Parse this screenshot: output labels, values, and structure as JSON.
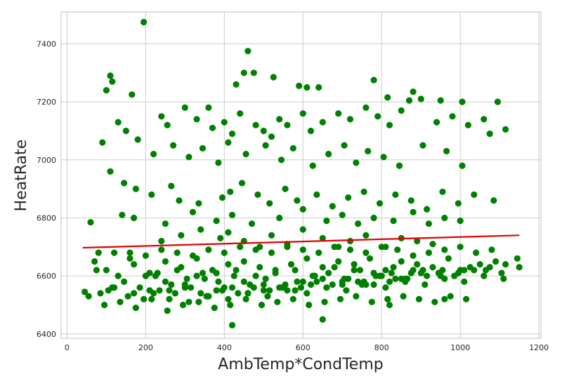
{
  "chart_data": {
    "type": "scatter",
    "title": "",
    "xlabel": "AmbTemp*CondTemp",
    "ylabel": "HeatRate",
    "xlim": [
      -15,
      1205
    ],
    "ylim": [
      6385,
      7510
    ],
    "xticks": [
      0,
      200,
      400,
      600,
      800,
      1000,
      1200
    ],
    "yticks": [
      6400,
      6600,
      6800,
      7000,
      7200,
      7400
    ],
    "grid": true,
    "colors": {
      "points": "#008000",
      "fit_line": "#e00000",
      "grid": "#cccccc"
    },
    "series": [
      {
        "kind": "points",
        "x": [
          195,
          460,
          110,
          115,
          165,
          450,
          475,
          525,
          100,
          430,
          590,
          610,
          640,
          780,
          880,
          815,
          900,
          870,
          950,
          1005,
          1095,
          1115,
          240,
          255,
          300,
          330,
          360,
          370,
          400,
          420,
          440,
          480,
          500,
          520,
          540,
          560,
          600,
          620,
          650,
          690,
          720,
          760,
          790,
          820,
          850,
          940,
          980,
          1020,
          1060,
          90,
          130,
          150,
          180,
          220,
          270,
          310,
          345,
          385,
          410,
          455,
          505,
          545,
          575,
          625,
          665,
          705,
          735,
          765,
          805,
          845,
          905,
          965,
          1005,
          1075,
          110,
          145,
          175,
          215,
          265,
          285,
          335,
          395,
          415,
          445,
          485,
          515,
          555,
          585,
          635,
          675,
          715,
          755,
          795,
          835,
          875,
          915,
          955,
          995,
          1035,
          1085,
          140,
          170,
          250,
          320,
          380,
          420,
          470,
          540,
          600,
          660,
          700,
          740,
          780,
          830,
          880,
          920,
          960,
          1000,
          60,
          160,
          240,
          290,
          340,
          390,
          410,
          450,
          490,
          520,
          560,
          600,
          650,
          690,
          720,
          760,
          810,
          850,
          890,
          930,
          45,
          75,
          105,
          145,
          185,
          225,
          265,
          305,
          345,
          385,
          425,
          465,
          505,
          545,
          585,
          625,
          665,
          705,
          745,
          785,
          825,
          865,
          905,
          945,
          985,
          1025,
          1065,
          1105,
          1150,
          55,
          85,
          115,
          155,
          195,
          235,
          275,
          315,
          355,
          395,
          435,
          475,
          515,
          555,
          595,
          635,
          675,
          715,
          755,
          795,
          835,
          875,
          915,
          955,
          995,
          1035,
          1075,
          1115,
          1145,
          70,
          100,
          130,
          170,
          210,
          250,
          290,
          330,
          370,
          410,
          450,
          490,
          530,
          570,
          610,
          650,
          690,
          730,
          770,
          810,
          850,
          890,
          930,
          970,
          1010,
          1050,
          1090,
          80,
          120,
          160,
          200,
          240,
          280,
          320,
          360,
          400,
          440,
          480,
          520,
          560,
          600,
          640,
          680,
          720,
          760,
          800,
          840,
          880,
          920,
          960,
          1000,
          1040,
          1080,
          95,
          135,
          175,
          215,
          255,
          295,
          335,
          375,
          415,
          455,
          495,
          535,
          575,
          615,
          655,
          695,
          735,
          775,
          815,
          855,
          895,
          935,
          975,
          1015,
          200,
          250,
          300,
          350,
          400,
          450,
          500,
          550,
          600,
          650,
          700,
          750,
          800,
          850,
          900,
          950,
          1000,
          220,
          260,
          300,
          340,
          380,
          420,
          460,
          500,
          540,
          580,
          620,
          660,
          700,
          740,
          780,
          820,
          860,
          230,
          280,
          330,
          380,
          430,
          480,
          530,
          580,
          630,
          680,
          730,
          780,
          830,
          880,
          420,
          650,
          820,
          960,
          120,
          170,
          210,
          260,
          310,
          360,
          410,
          460,
          510,
          560,
          610,
          660,
          710,
          760,
          810,
          860,
          910,
          960,
          1010,
          1060,
          1110
        ],
        "y": [
          7475,
          7375,
          7290,
          7270,
          7225,
          7300,
          7300,
          7285,
          7240,
          7260,
          7255,
          7250,
          7250,
          7275,
          7235,
          7215,
          7210,
          7205,
          7205,
          7200,
          7200,
          7105,
          7150,
          7120,
          7180,
          7140,
          7180,
          7110,
          7130,
          7090,
          7160,
          7120,
          7100,
          7080,
          7140,
          7120,
          7160,
          7100,
          7130,
          7160,
          7140,
          7180,
          7150,
          7120,
          7170,
          7130,
          7150,
          7120,
          7140,
          7060,
          7130,
          7100,
          7070,
          7020,
          7050,
          7010,
          7040,
          6990,
          7060,
          7020,
          7050,
          7000,
          7040,
          6980,
          7020,
          7050,
          6990,
          7030,
          7010,
          6980,
          7050,
          7030,
          6980,
          7090,
          6960,
          6920,
          6900,
          6880,
          6910,
          6860,
          6850,
          6870,
          6890,
          6920,
          6880,
          6850,
          6900,
          6860,
          6880,
          6840,
          6870,
          6890,
          6850,
          6880,
          6860,
          6830,
          6890,
          6850,
          6880,
          6860,
          6810,
          6800,
          6780,
          6820,
          6790,
          6810,
          6780,
          6800,
          6830,
          6790,
          6810,
          6780,
          6800,
          6790,
          6820,
          6780,
          6800,
          6790,
          6785,
          6680,
          6720,
          6740,
          6760,
          6730,
          6750,
          6720,
          6700,
          6740,
          6710,
          6760,
          6730,
          6700,
          6720,
          6740,
          6700,
          6730,
          6720,
          6710,
          6545,
          6620,
          6550,
          6580,
          6560,
          6600,
          6570,
          6590,
          6610,
          6580,
          6600,
          6570,
          6590,
          6560,
          6580,
          6600,
          6610,
          6590,
          6620,
          6600,
          6610,
          6590,
          6620,
          6610,
          6600,
          6630,
          6620,
          6610,
          6630,
          6530,
          6540,
          6560,
          6530,
          6520,
          6550,
          6540,
          6560,
          6530,
          6550,
          6540,
          6560,
          6550,
          6570,
          6560,
          6580,
          6570,
          6590,
          6580,
          6600,
          6590,
          6610,
          6600,
          6620,
          6610,
          6620,
          6630,
          6640,
          6660,
          6650,
          6620,
          6600,
          6640,
          6610,
          6650,
          6630,
          6660,
          6620,
          6640,
          6650,
          6630,
          6620,
          6640,
          6660,
          6630,
          6650,
          6640,
          6660,
          6620,
          6650,
          6640,
          6630,
          6660,
          6620,
          6640,
          6650,
          6680,
          6680,
          6660,
          6670,
          6690,
          6680,
          6670,
          6690,
          6680,
          6700,
          6690,
          6680,
          6700,
          6690,
          6680,
          6700,
          6690,
          6680,
          6700,
          6690,
          6670,
          6680,
          6690,
          6700,
          6680,
          6690,
          6500,
          6510,
          6490,
          6520,
          6480,
          6500,
          6510,
          6490,
          6500,
          6520,
          6500,
          6510,
          6520,
          6500,
          6510,
          6520,
          6530,
          6510,
          6520,
          6530,
          6520,
          6510,
          6530,
          6520,
          6600,
          6580,
          6570,
          6590,
          6560,
          6580,
          6570,
          6560,
          6580,
          6590,
          6580,
          6570,
          6600,
          6590,
          6610,
          6600,
          6620,
          6540,
          6550,
          6560,
          6540,
          6550,
          6560,
          6540,
          6550,
          6560,
          6550,
          6570,
          6560,
          6570,
          6580,
          6570,
          6580,
          6590,
          6610,
          6620,
          6600,
          6610,
          6620,
          6600,
          6610,
          6620,
          6600,
          6630,
          6620,
          6610,
          6630,
          6620,
          6430,
          6450,
          6500,
          6520,
          6560,
          6540,
          6550,
          6520,
          6510,
          6530,
          6520,
          6540,
          6530,
          6550,
          6540,
          6560,
          6550,
          6570,
          6560,
          6580,
          6570,
          6590,
          6580,
          6600,
          6590
        ]
      },
      {
        "kind": "fit_line",
        "x": [
          40,
          1150
        ],
        "y": [
          6697,
          6740
        ]
      }
    ]
  }
}
